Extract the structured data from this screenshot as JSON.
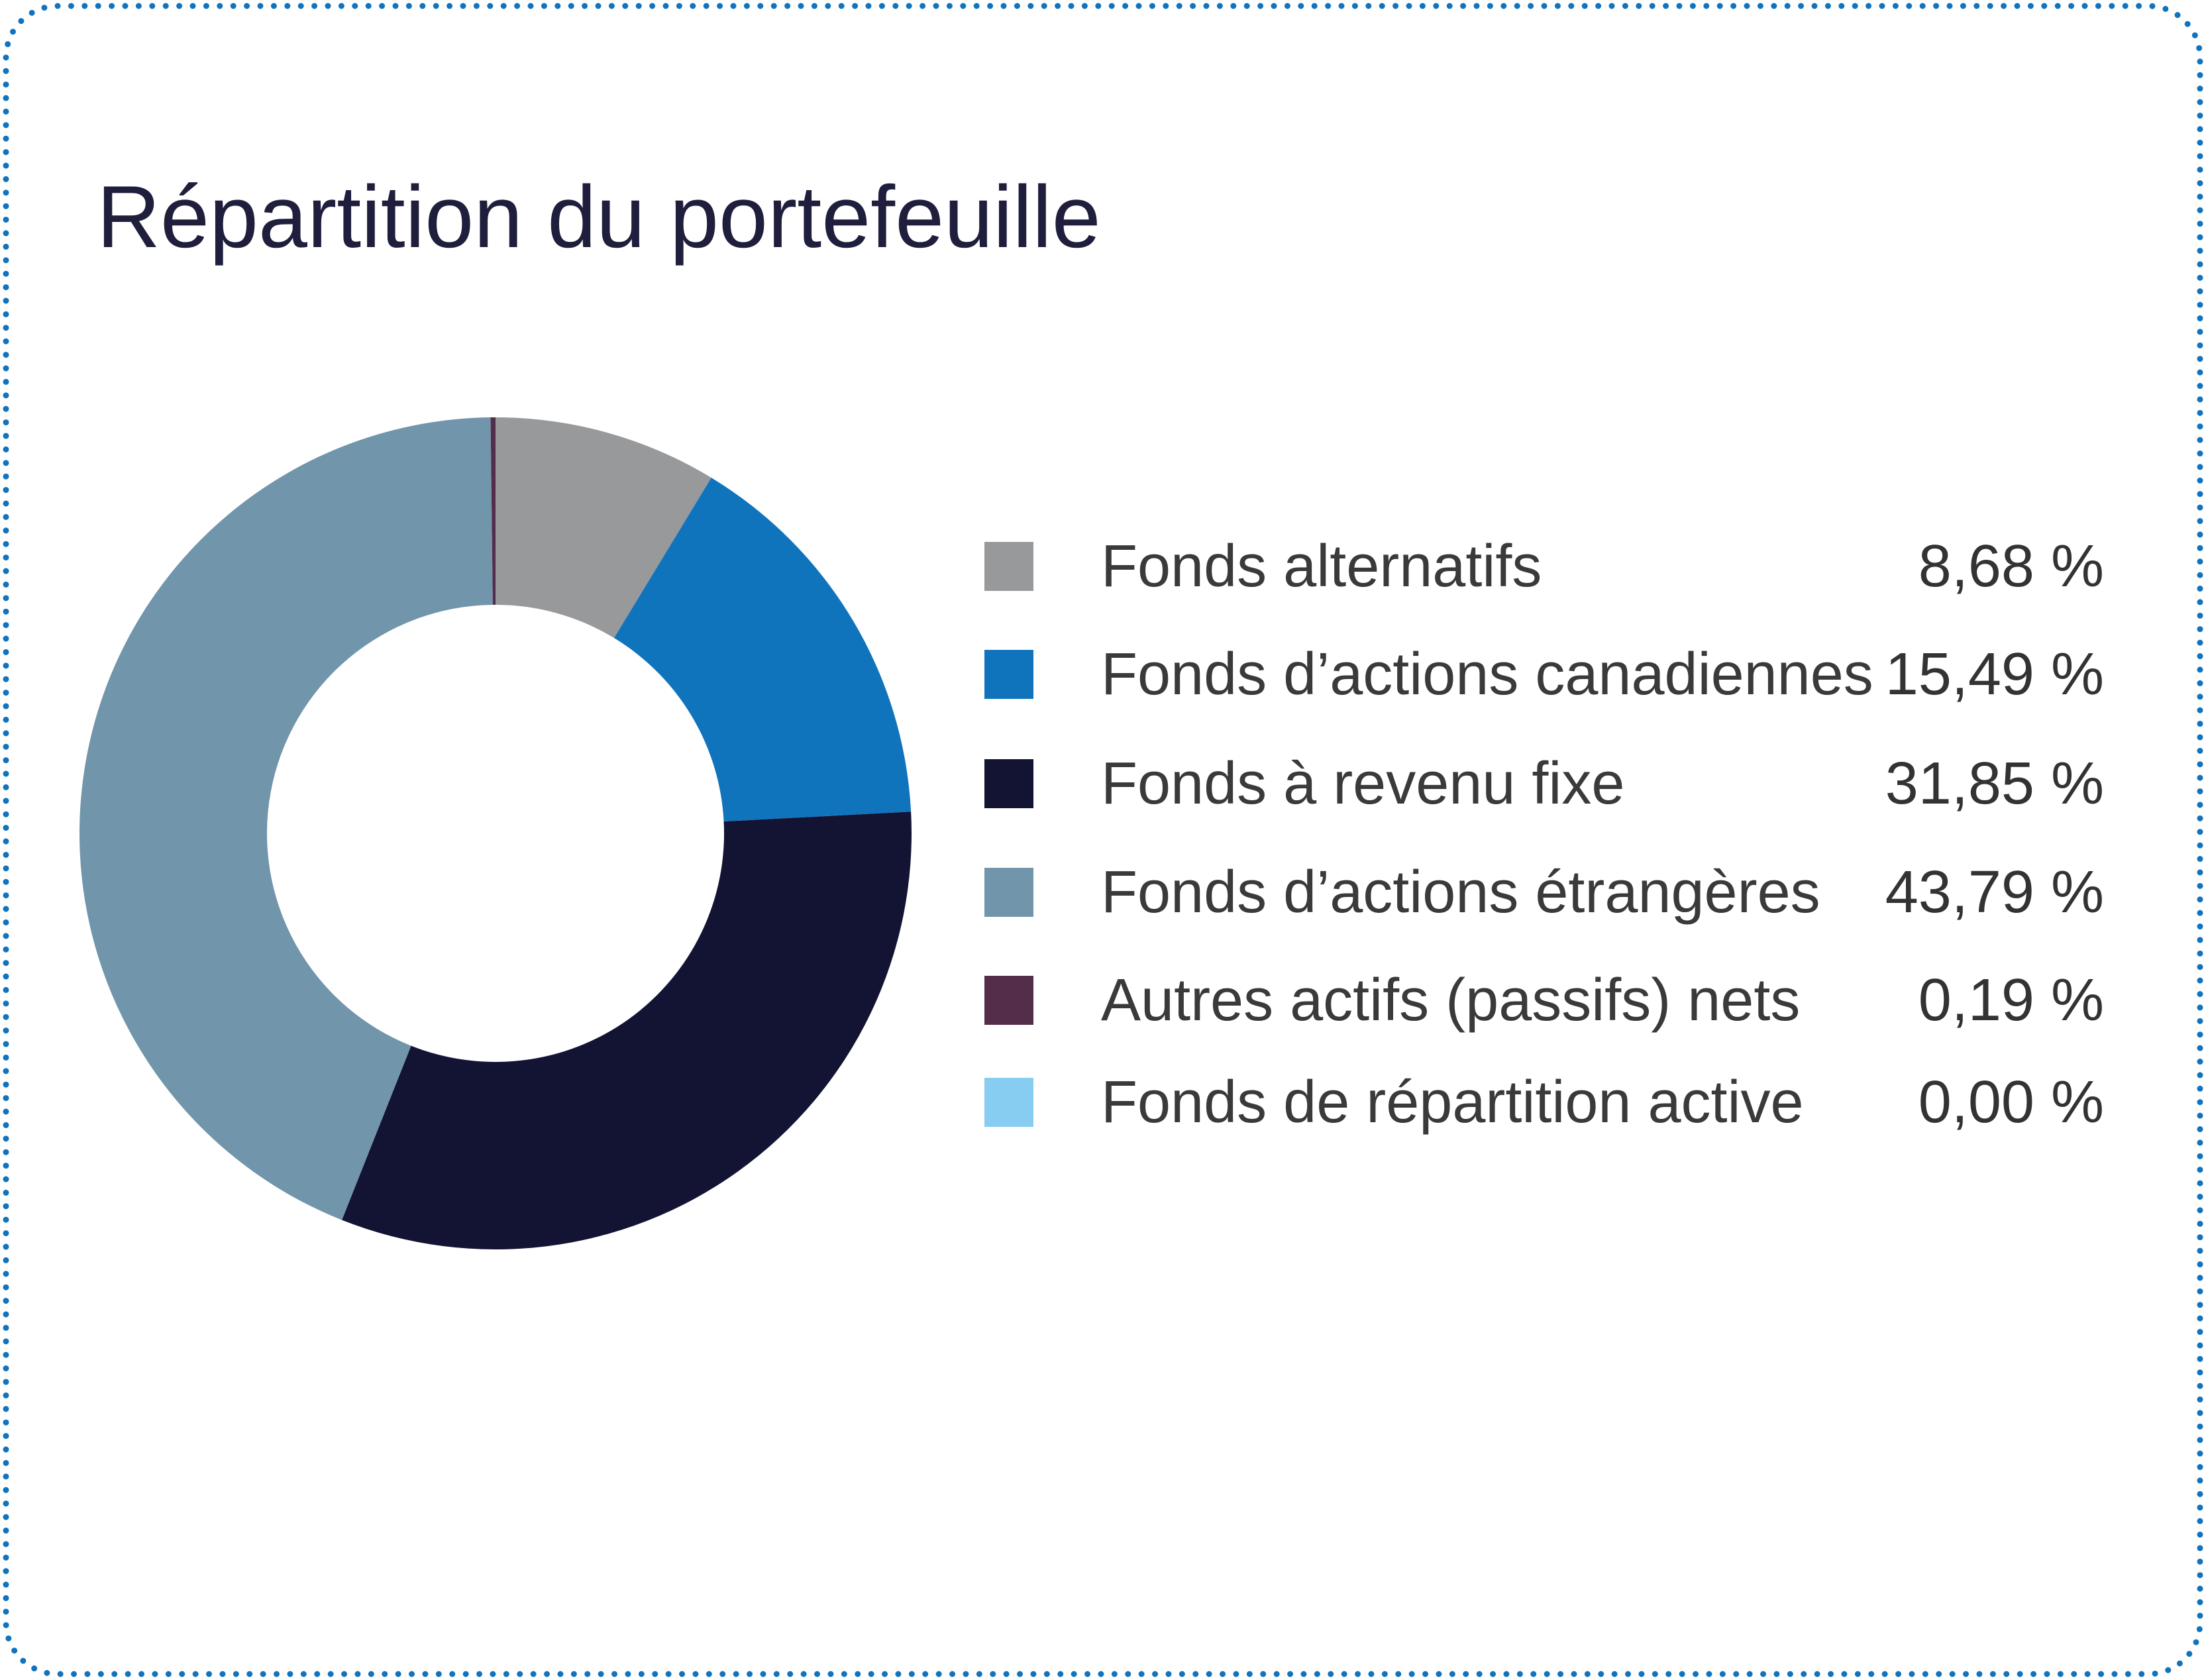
{
  "page": {
    "title": "Répartition du portefeuille"
  },
  "colors": {
    "border_dots": "#1173bd",
    "title_text": "#1f1f3d",
    "legend_text": "#3a3a3a",
    "background": "#ffffff"
  },
  "chart_data": {
    "type": "pie",
    "variant": "donut",
    "title": "Répartition du portefeuille",
    "start_angle_deg": 0,
    "direction": "clockwise",
    "inner_radius_ratio": 0.55,
    "legend_position": "right",
    "series": [
      {
        "label": "Fonds alternatifs",
        "value": 8.68,
        "display": "8,68 %",
        "color": "#98999b"
      },
      {
        "label": "Fonds d’actions canadiennes",
        "value": 15.49,
        "display": "15,49 %",
        "color": "#1074bd"
      },
      {
        "label": "Fonds à revenu fixe",
        "value": 31.85,
        "display": "31,85 %",
        "color": "#131334"
      },
      {
        "label": "Fonds d’actions étrangères",
        "value": 43.79,
        "display": "43,79 %",
        "color": "#7195ab"
      },
      {
        "label": "Autres actifs (passifs) nets",
        "value": 0.19,
        "display": "0,19 %",
        "color": "#542d4b"
      },
      {
        "label": "Fonds de répartition active",
        "value": 0.0,
        "display": "0,00 %",
        "color": "#87cdf2"
      }
    ]
  }
}
